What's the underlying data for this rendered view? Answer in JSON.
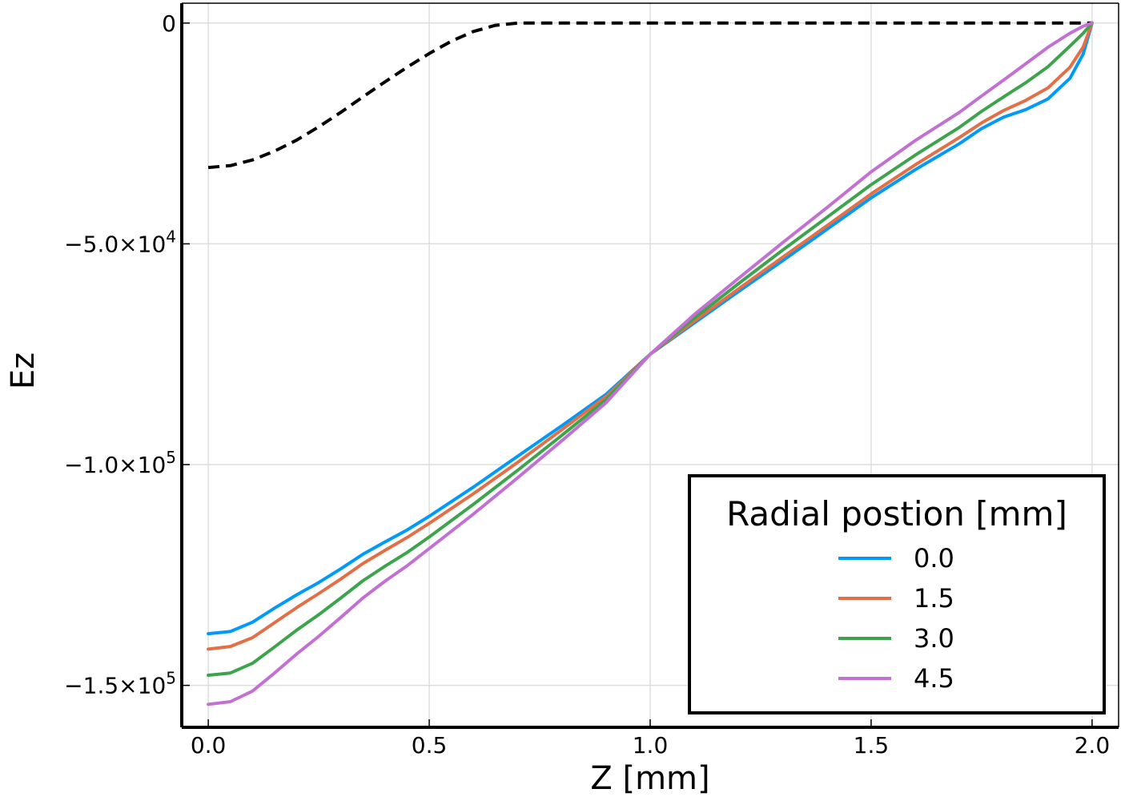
{
  "chart_data": {
    "type": "line",
    "title": "",
    "xlabel": "Z [mm]",
    "ylabel": "Ez",
    "xlim": [
      -0.06,
      2.06
    ],
    "ylim": [
      -159500,
      4500
    ],
    "grid": true,
    "x_ticks": [
      {
        "value": 0.0,
        "label": "0.0"
      },
      {
        "value": 0.5,
        "label": "0.5"
      },
      {
        "value": 1.0,
        "label": "1.0"
      },
      {
        "value": 1.5,
        "label": "1.5"
      },
      {
        "value": 2.0,
        "label": "2.0"
      }
    ],
    "y_ticks": [
      {
        "value": 0,
        "label": "0",
        "exp": ""
      },
      {
        "value": -50000,
        "label": "−5.0×10",
        "exp": "4"
      },
      {
        "value": -100000,
        "label": "−1.0×10",
        "exp": "5"
      },
      {
        "value": -150000,
        "label": "−1.5×10",
        "exp": "5"
      }
    ],
    "legend": {
      "title": "Radial postion [mm]",
      "placement": "bottom-right"
    },
    "reference_line": {
      "name": "dashed",
      "style": "dashed",
      "color": "#000000",
      "points": [
        [
          0.0,
          -32700
        ],
        [
          0.05,
          -32300
        ],
        [
          0.1,
          -31000
        ],
        [
          0.15,
          -29000
        ],
        [
          0.2,
          -26500
        ],
        [
          0.25,
          -23500
        ],
        [
          0.3,
          -20200
        ],
        [
          0.35,
          -16700
        ],
        [
          0.4,
          -13300
        ],
        [
          0.45,
          -10000
        ],
        [
          0.5,
          -6900
        ],
        [
          0.55,
          -4100
        ],
        [
          0.6,
          -1900
        ],
        [
          0.65,
          -500
        ],
        [
          0.7,
          0
        ],
        [
          0.8,
          0
        ],
        [
          1.0,
          0
        ],
        [
          1.5,
          0
        ],
        [
          2.0,
          0
        ]
      ]
    },
    "series": [
      {
        "name": "0.0",
        "color": "#009af9",
        "points": [
          [
            0.0,
            -138300
          ],
          [
            0.05,
            -137800
          ],
          [
            0.1,
            -135700
          ],
          [
            0.15,
            -132500
          ],
          [
            0.2,
            -129500
          ],
          [
            0.25,
            -126700
          ],
          [
            0.3,
            -123600
          ],
          [
            0.35,
            -120300
          ],
          [
            0.4,
            -117500
          ],
          [
            0.45,
            -114800
          ],
          [
            0.5,
            -111700
          ],
          [
            0.6,
            -105100
          ],
          [
            0.7,
            -98100
          ],
          [
            0.8,
            -91200
          ],
          [
            0.9,
            -84100
          ],
          [
            1.0,
            -75000
          ],
          [
            1.1,
            -67900
          ],
          [
            1.2,
            -60800
          ],
          [
            1.3,
            -53800
          ],
          [
            1.4,
            -46700
          ],
          [
            1.5,
            -39600
          ],
          [
            1.6,
            -33200
          ],
          [
            1.7,
            -27300
          ],
          [
            1.75,
            -23900
          ],
          [
            1.8,
            -21300
          ],
          [
            1.85,
            -19600
          ],
          [
            1.9,
            -17200
          ],
          [
            1.95,
            -12500
          ],
          [
            1.98,
            -7000
          ],
          [
            2.0,
            0
          ]
        ]
      },
      {
        "name": "1.5",
        "color": "#e26f46",
        "points": [
          [
            0.0,
            -141800
          ],
          [
            0.05,
            -141200
          ],
          [
            0.1,
            -139200
          ],
          [
            0.15,
            -135800
          ],
          [
            0.2,
            -132400
          ],
          [
            0.25,
            -129200
          ],
          [
            0.3,
            -125900
          ],
          [
            0.35,
            -122400
          ],
          [
            0.4,
            -119400
          ],
          [
            0.45,
            -116500
          ],
          [
            0.5,
            -113300
          ],
          [
            0.6,
            -106600
          ],
          [
            0.7,
            -99500
          ],
          [
            0.8,
            -92100
          ],
          [
            0.9,
            -84600
          ],
          [
            1.0,
            -75000
          ],
          [
            1.1,
            -67500
          ],
          [
            1.2,
            -60200
          ],
          [
            1.3,
            -53000
          ],
          [
            1.4,
            -45900
          ],
          [
            1.5,
            -38700
          ],
          [
            1.6,
            -32100
          ],
          [
            1.7,
            -25900
          ],
          [
            1.75,
            -22600
          ],
          [
            1.8,
            -19800
          ],
          [
            1.85,
            -17500
          ],
          [
            1.9,
            -14700
          ],
          [
            1.95,
            -10000
          ],
          [
            1.98,
            -5400
          ],
          [
            2.0,
            0
          ]
        ]
      },
      {
        "name": "3.0",
        "color": "#3da44d",
        "points": [
          [
            0.0,
            -147700
          ],
          [
            0.05,
            -147200
          ],
          [
            0.1,
            -145000
          ],
          [
            0.15,
            -141300
          ],
          [
            0.2,
            -137500
          ],
          [
            0.25,
            -134000
          ],
          [
            0.3,
            -130200
          ],
          [
            0.35,
            -126300
          ],
          [
            0.4,
            -123000
          ],
          [
            0.45,
            -119900
          ],
          [
            0.5,
            -116400
          ],
          [
            0.6,
            -109000
          ],
          [
            0.7,
            -101300
          ],
          [
            0.8,
            -93400
          ],
          [
            0.9,
            -85300
          ],
          [
            1.0,
            -75000
          ],
          [
            1.1,
            -66800
          ],
          [
            1.2,
            -59000
          ],
          [
            1.3,
            -51400
          ],
          [
            1.4,
            -44000
          ],
          [
            1.5,
            -36600
          ],
          [
            1.6,
            -29900
          ],
          [
            1.7,
            -23600
          ],
          [
            1.75,
            -20000
          ],
          [
            1.8,
            -16700
          ],
          [
            1.85,
            -13500
          ],
          [
            1.9,
            -9900
          ],
          [
            1.95,
            -5200
          ],
          [
            1.98,
            -2300
          ],
          [
            2.0,
            0
          ]
        ]
      },
      {
        "name": "4.5",
        "color": "#c271d2",
        "points": [
          [
            0.0,
            -154300
          ],
          [
            0.05,
            -153700
          ],
          [
            0.1,
            -151300
          ],
          [
            0.15,
            -147200
          ],
          [
            0.2,
            -142900
          ],
          [
            0.25,
            -138900
          ],
          [
            0.3,
            -134600
          ],
          [
            0.35,
            -130200
          ],
          [
            0.4,
            -126400
          ],
          [
            0.45,
            -122900
          ],
          [
            0.5,
            -119000
          ],
          [
            0.6,
            -111200
          ],
          [
            0.7,
            -103000
          ],
          [
            0.8,
            -94600
          ],
          [
            0.9,
            -86000
          ],
          [
            1.0,
            -75000
          ],
          [
            1.1,
            -66000
          ],
          [
            1.2,
            -57800
          ],
          [
            1.3,
            -49700
          ],
          [
            1.4,
            -41800
          ],
          [
            1.5,
            -33700
          ],
          [
            1.6,
            -26600
          ],
          [
            1.7,
            -20200
          ],
          [
            1.75,
            -16500
          ],
          [
            1.8,
            -12900
          ],
          [
            1.85,
            -9200
          ],
          [
            1.9,
            -5500
          ],
          [
            1.95,
            -2300
          ],
          [
            1.98,
            -700
          ],
          [
            2.0,
            0
          ]
        ]
      }
    ]
  }
}
